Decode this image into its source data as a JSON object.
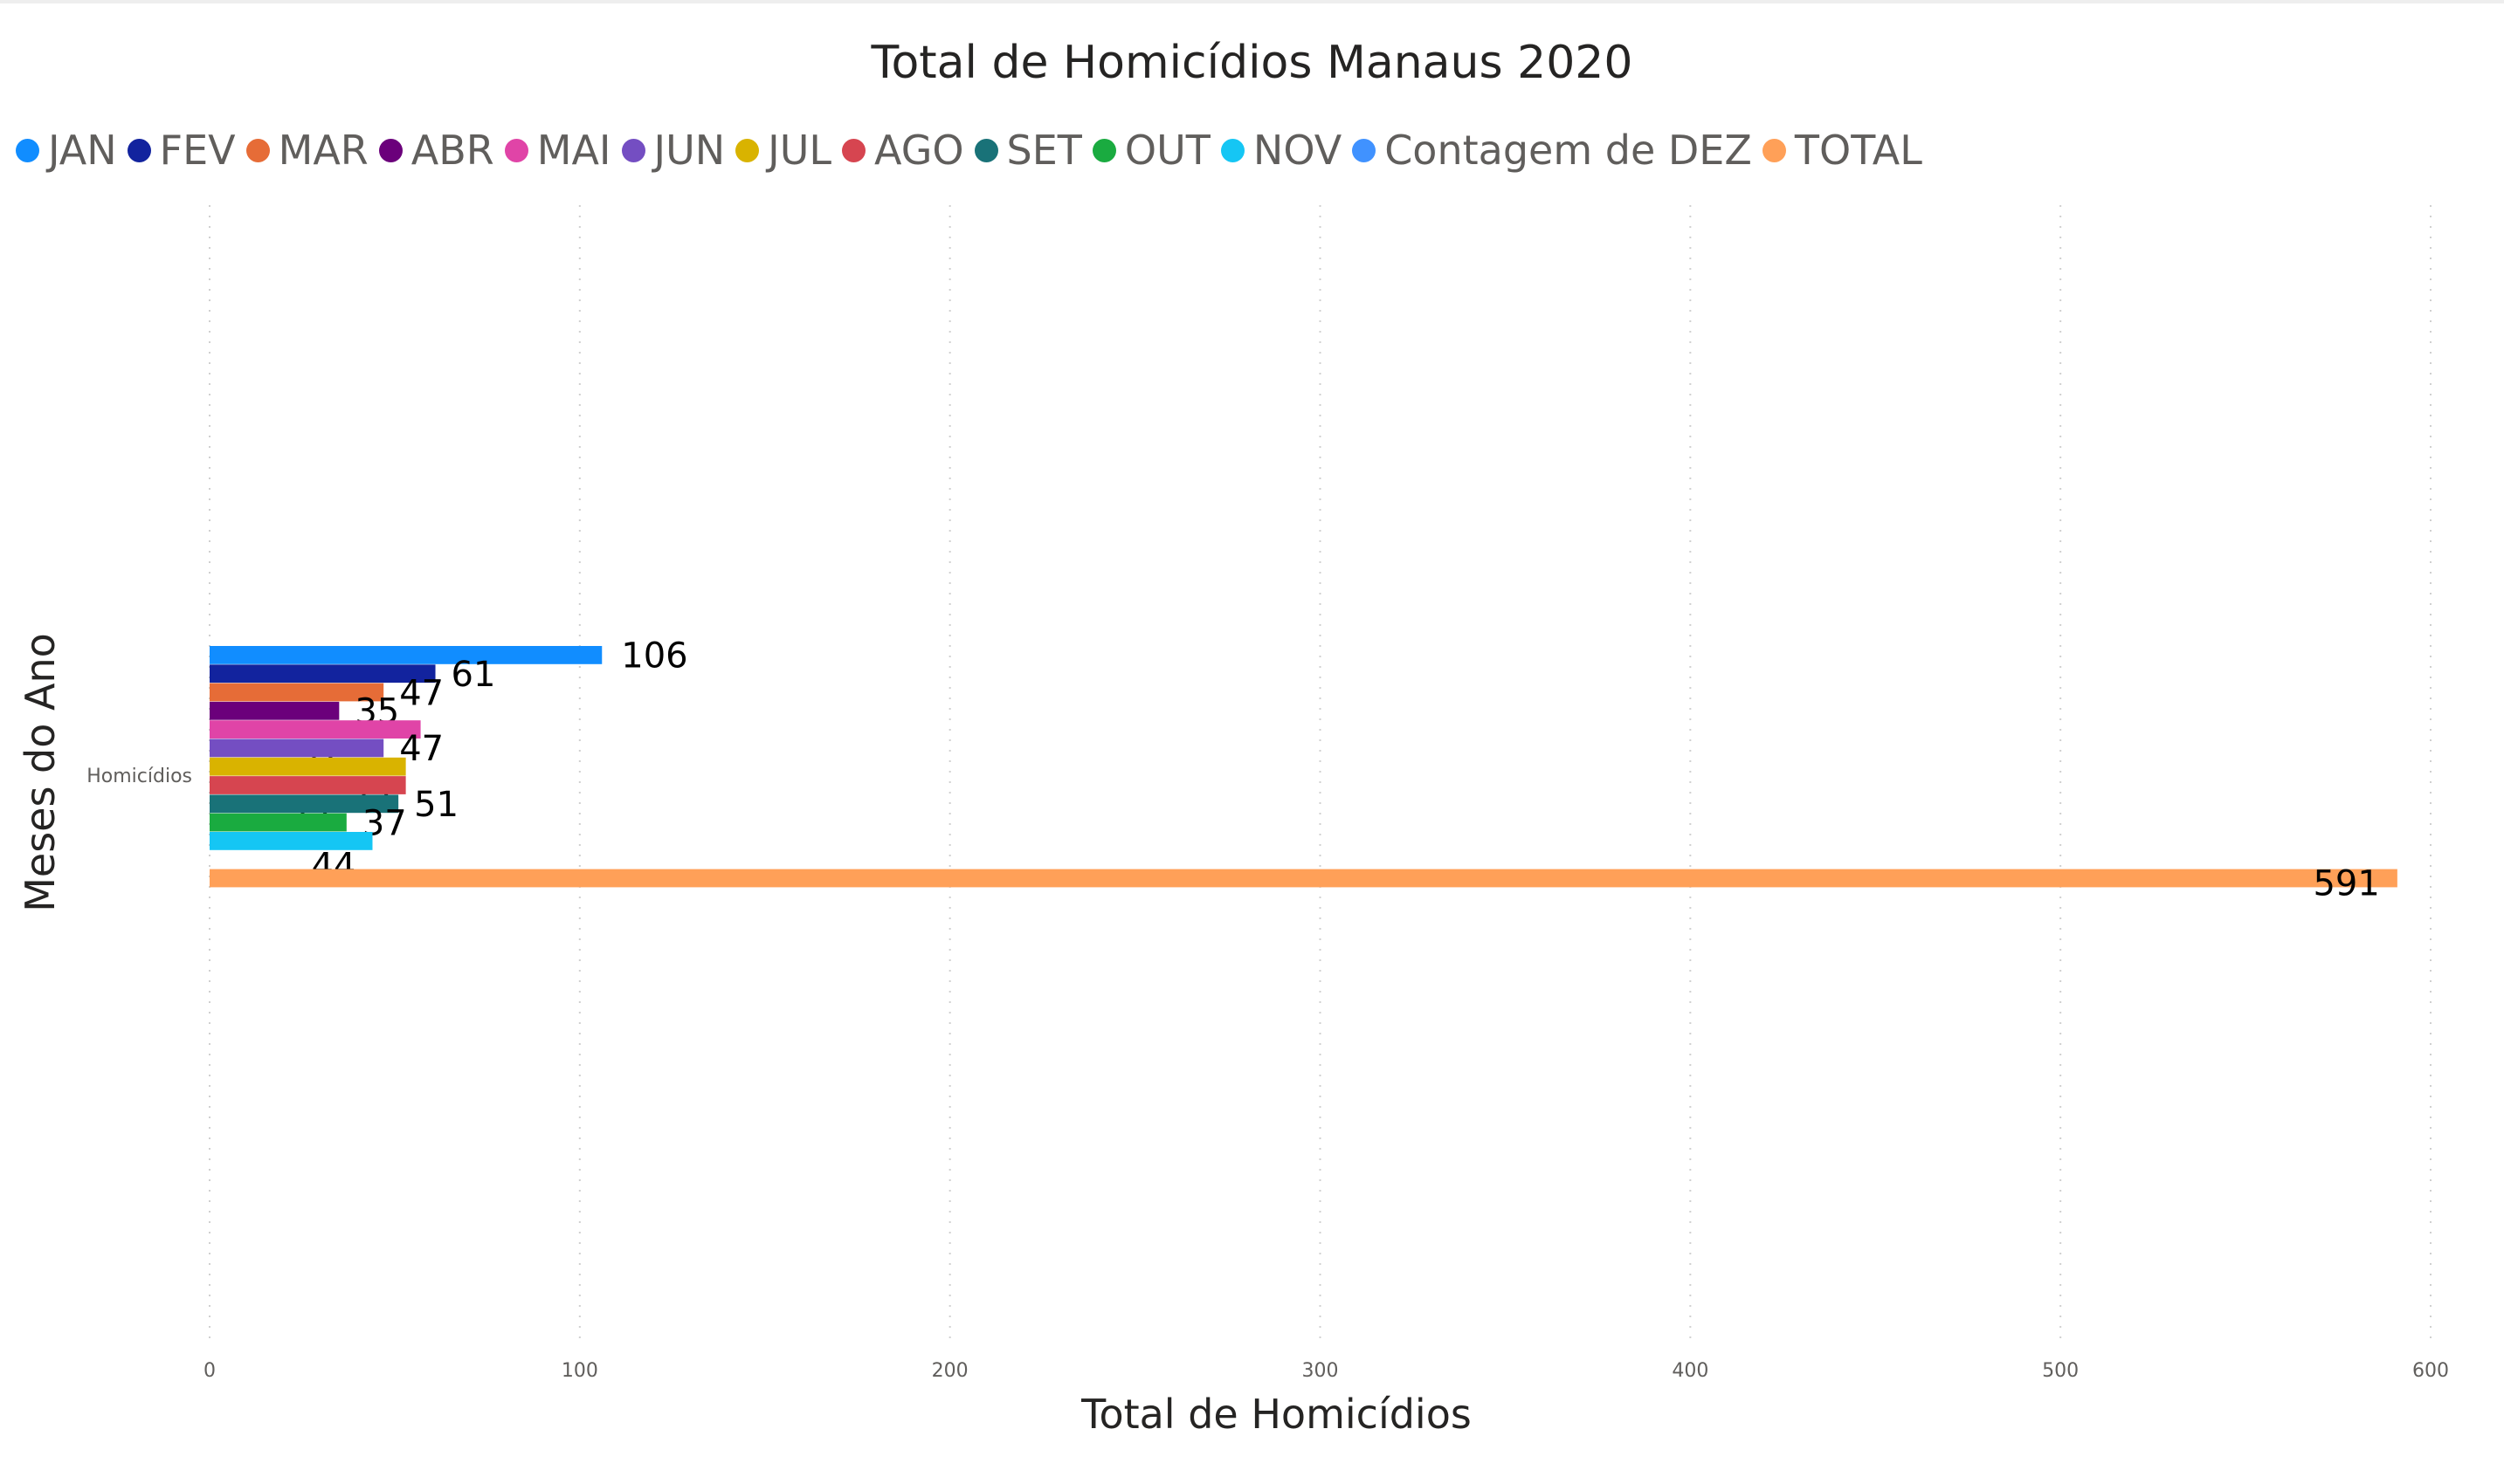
{
  "title": "Total de Homicídios Manaus 2020",
  "chart_data": {
    "type": "bar",
    "orientation": "horizontal",
    "title": "Total de Homicídios Manaus 2020",
    "xlabel": "Total de Homicídios",
    "ylabel": "Meses do Ano",
    "categories": [
      "Homicídios"
    ],
    "xlim": [
      0,
      600
    ],
    "x_ticks": [
      0,
      100,
      200,
      300,
      400,
      500,
      600
    ],
    "grid": "vertical dotted",
    "legend_position": "top-left",
    "series": [
      {
        "name": "JAN",
        "color": "#118DFF",
        "values": [
          106
        ]
      },
      {
        "name": "FEV",
        "color": "#12239E",
        "values": [
          61
        ]
      },
      {
        "name": "MAR",
        "color": "#E66C37",
        "values": [
          47
        ]
      },
      {
        "name": "ABR",
        "color": "#6B007B",
        "values": [
          35
        ]
      },
      {
        "name": "MAI",
        "color": "#E044A7",
        "values": [
          57
        ]
      },
      {
        "name": "JUN",
        "color": "#744EC2",
        "values": [
          47
        ]
      },
      {
        "name": "JUL",
        "color": "#D9B300",
        "values": [
          53
        ]
      },
      {
        "name": "AGO",
        "color": "#D64550",
        "values": [
          53
        ]
      },
      {
        "name": "SET",
        "color": "#197278",
        "values": [
          51
        ]
      },
      {
        "name": "OUT",
        "color": "#1AAB40",
        "values": [
          37
        ]
      },
      {
        "name": "NOV",
        "color": "#15C6F4",
        "values": [
          44
        ]
      },
      {
        "name": "Contagem de DEZ",
        "color": "#4092FF",
        "values": [
          null
        ]
      },
      {
        "name": "TOTAL",
        "color": "#FFA058",
        "values": [
          591
        ]
      }
    ]
  }
}
